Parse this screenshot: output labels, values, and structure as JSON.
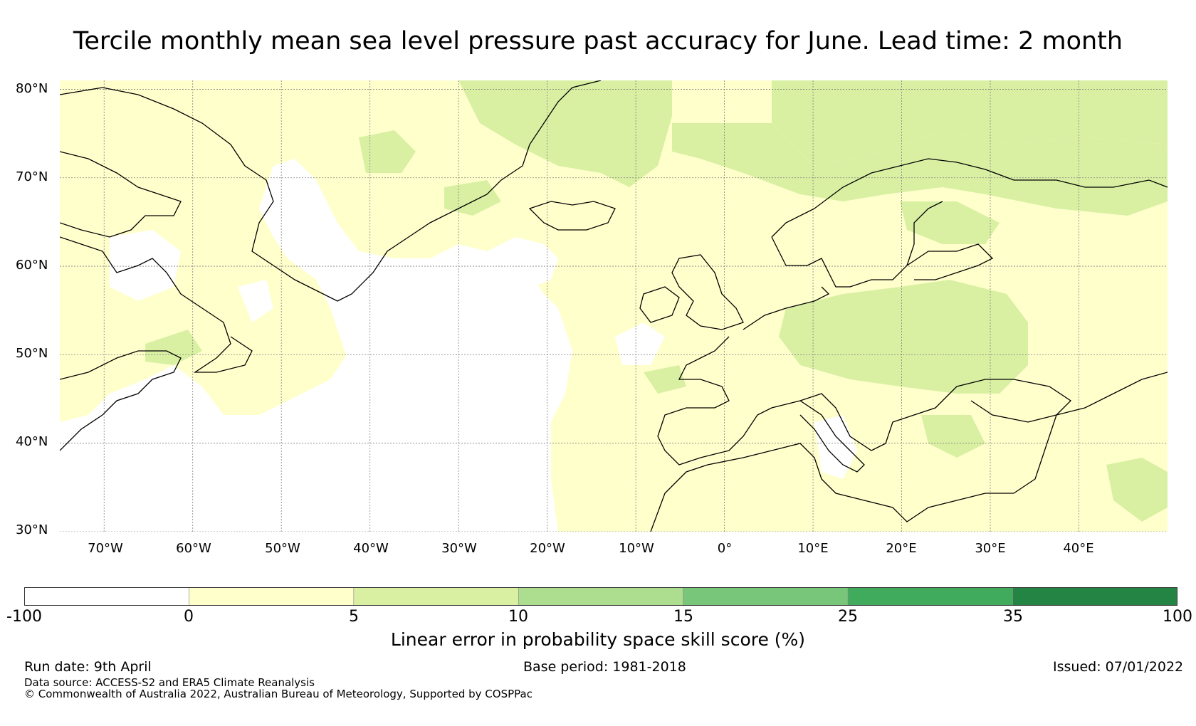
{
  "title": "Tercile monthly mean sea level pressure past accuracy for June. Lead time: 2 month",
  "map": {
    "lat_labels": [
      "80°N",
      "70°N",
      "60°N",
      "50°N",
      "40°N",
      "30°N"
    ],
    "lon_labels": [
      "70°W",
      "60°W",
      "50°W",
      "40°W",
      "30°W",
      "20°W",
      "10°W",
      "0°",
      "10°E",
      "20°E",
      "30°E",
      "40°E"
    ],
    "lat_range": [
      30,
      81
    ],
    "lon_range": [
      -75,
      50
    ],
    "gridlines": true
  },
  "colorbar": {
    "ticks": [
      "-100",
      "0",
      "5",
      "10",
      "15",
      "25",
      "35",
      "100"
    ],
    "colors": [
      "#ffffff",
      "#ffffcc",
      "#d9f0a3",
      "#addd8e",
      "#78c679",
      "#41ab5d",
      "#238443"
    ],
    "label": "Linear error in probability space skill score (%)"
  },
  "footer": {
    "run_date": "Run date: 9th April",
    "base_period": "Base period: 1981-2018",
    "issued": "Issued: 07/01/2022",
    "data_source": "Data source: ACCESS-S2 and ERA5 Climate Reanalysis",
    "copyright": "© Commonwealth of Australia 2022, Australian Bureau of Meteorology, Supported by COSPPac"
  }
}
